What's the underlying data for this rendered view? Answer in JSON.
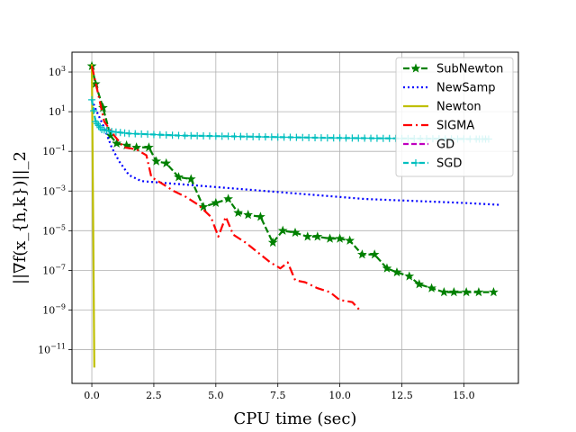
{
  "chart_data": {
    "type": "line",
    "xlabel": "CPU time (sec)",
    "ylabel": "||∇f(x_{h,k})||_2",
    "xlim": [
      -0.8,
      17.2
    ],
    "ylim": [
      -12.7,
      4.0
    ],
    "y_scale": "log",
    "grid": true,
    "legend_position": "top-right",
    "x_ticks": [
      0.0,
      2.5,
      5.0,
      7.5,
      10.0,
      12.5,
      15.0
    ],
    "x_tick_labels": [
      "0.0",
      "2.5",
      "5.0",
      "7.5",
      "10.0",
      "12.5",
      "15.0"
    ],
    "y_ticks": [
      3,
      1,
      -1,
      -3,
      -5,
      -7,
      -9,
      -11
    ],
    "y_tick_labels": [
      "10",
      "10",
      "10",
      "10",
      "10",
      "10",
      "10",
      "10"
    ],
    "y_tick_exponents": [
      "3",
      "1",
      "−1",
      "−3",
      "−5",
      "−7",
      "−9",
      "−11"
    ],
    "series": [
      {
        "name": "SubNewton",
        "color": "#008000",
        "dash": "7,3",
        "marker": "star",
        "points": [
          [
            0.0,
            3.3
          ],
          [
            0.15,
            2.4
          ],
          [
            0.45,
            1.2
          ],
          [
            0.75,
            -0.2
          ],
          [
            1.0,
            -0.6
          ],
          [
            1.4,
            -0.7
          ],
          [
            1.8,
            -0.8
          ],
          [
            2.3,
            -0.8
          ],
          [
            2.6,
            -1.5
          ],
          [
            3.0,
            -1.6
          ],
          [
            3.5,
            -2.3
          ],
          [
            4.0,
            -2.4
          ],
          [
            4.5,
            -3.8
          ],
          [
            5.0,
            -3.6
          ],
          [
            5.5,
            -3.4
          ],
          [
            5.9,
            -4.1
          ],
          [
            6.3,
            -4.2
          ],
          [
            6.8,
            -4.3
          ],
          [
            7.3,
            -5.6
          ],
          [
            7.7,
            -5.0
          ],
          [
            8.2,
            -5.1
          ],
          [
            8.7,
            -5.3
          ],
          [
            9.1,
            -5.3
          ],
          [
            9.6,
            -5.4
          ],
          [
            10.0,
            -5.4
          ],
          [
            10.4,
            -5.5
          ],
          [
            10.9,
            -6.2
          ],
          [
            11.4,
            -6.2
          ],
          [
            11.9,
            -6.9
          ],
          [
            12.3,
            -7.1
          ],
          [
            12.8,
            -7.3
          ],
          [
            13.2,
            -7.7
          ],
          [
            13.7,
            -7.9
          ],
          [
            14.2,
            -8.1
          ],
          [
            14.6,
            -8.1
          ],
          [
            15.1,
            -8.1
          ],
          [
            15.6,
            -8.1
          ],
          [
            16.2,
            -8.1
          ]
        ]
      },
      {
        "name": "NewSamp",
        "color": "#0000ff",
        "dash": "2,3",
        "marker": "none",
        "points": [
          [
            0.0,
            1.6
          ],
          [
            0.2,
            1.0
          ],
          [
            0.5,
            0.2
          ],
          [
            0.8,
            -0.8
          ],
          [
            1.1,
            -1.5
          ],
          [
            1.5,
            -2.2
          ],
          [
            2.0,
            -2.5
          ],
          [
            3.0,
            -2.6
          ],
          [
            4.0,
            -2.7
          ],
          [
            5.0,
            -2.8
          ],
          [
            6.0,
            -2.9
          ],
          [
            7.0,
            -3.0
          ],
          [
            8.0,
            -3.1
          ],
          [
            9.0,
            -3.2
          ],
          [
            10.0,
            -3.3
          ],
          [
            11.0,
            -3.4
          ],
          [
            12.0,
            -3.45
          ],
          [
            13.0,
            -3.5
          ],
          [
            14.0,
            -3.55
          ],
          [
            15.0,
            -3.6
          ],
          [
            16.5,
            -3.7
          ]
        ]
      },
      {
        "name": "Newton",
        "color": "#bfbf00",
        "dash": "",
        "marker": "none",
        "points": [
          [
            0.0,
            3.4
          ],
          [
            0.05,
            -4.0
          ],
          [
            0.1,
            -11.9
          ]
        ]
      },
      {
        "name": "SIGMA",
        "color": "#ff0000",
        "dash": "10,4,2,4",
        "marker": "none",
        "points": [
          [
            0.0,
            3.3
          ],
          [
            0.2,
            2.2
          ],
          [
            0.5,
            0.5
          ],
          [
            0.9,
            -0.2
          ],
          [
            1.3,
            -0.8
          ],
          [
            1.8,
            -0.9
          ],
          [
            2.2,
            -1.2
          ],
          [
            2.4,
            -2.3
          ],
          [
            2.8,
            -2.6
          ],
          [
            3.3,
            -3.0
          ],
          [
            3.8,
            -3.3
          ],
          [
            4.3,
            -3.7
          ],
          [
            4.8,
            -4.3
          ],
          [
            5.1,
            -5.3
          ],
          [
            5.4,
            -4.3
          ],
          [
            5.7,
            -5.2
          ],
          [
            6.2,
            -5.6
          ],
          [
            6.7,
            -6.1
          ],
          [
            7.2,
            -6.6
          ],
          [
            7.6,
            -6.9
          ],
          [
            7.9,
            -6.6
          ],
          [
            8.2,
            -7.5
          ],
          [
            8.6,
            -7.6
          ],
          [
            9.1,
            -7.9
          ],
          [
            9.6,
            -8.1
          ],
          [
            10.0,
            -8.5
          ],
          [
            10.5,
            -8.6
          ],
          [
            10.8,
            -9.0
          ]
        ]
      },
      {
        "name": "GD",
        "color": "#bf00bf",
        "dash": "6,3",
        "marker": "none",
        "points": []
      },
      {
        "name": "SGD",
        "color": "#00bfbf",
        "dash": "6,3",
        "marker": "plus",
        "points": [
          [
            0.0,
            1.6
          ],
          [
            0.15,
            0.5
          ],
          [
            0.4,
            0.1
          ],
          [
            0.8,
            0.0
          ],
          [
            1.5,
            -0.1
          ],
          [
            2.5,
            -0.15
          ],
          [
            3.5,
            -0.2
          ],
          [
            4.5,
            -0.22
          ],
          [
            5.5,
            -0.24
          ],
          [
            6.5,
            -0.26
          ],
          [
            7.5,
            -0.28
          ],
          [
            8.5,
            -0.3
          ],
          [
            9.5,
            -0.32
          ],
          [
            10.5,
            -0.33
          ],
          [
            11.5,
            -0.34
          ],
          [
            12.5,
            -0.35
          ],
          [
            13.5,
            -0.36
          ],
          [
            14.5,
            -0.37
          ],
          [
            15.5,
            -0.38
          ],
          [
            16.0,
            -0.38
          ]
        ]
      }
    ]
  }
}
